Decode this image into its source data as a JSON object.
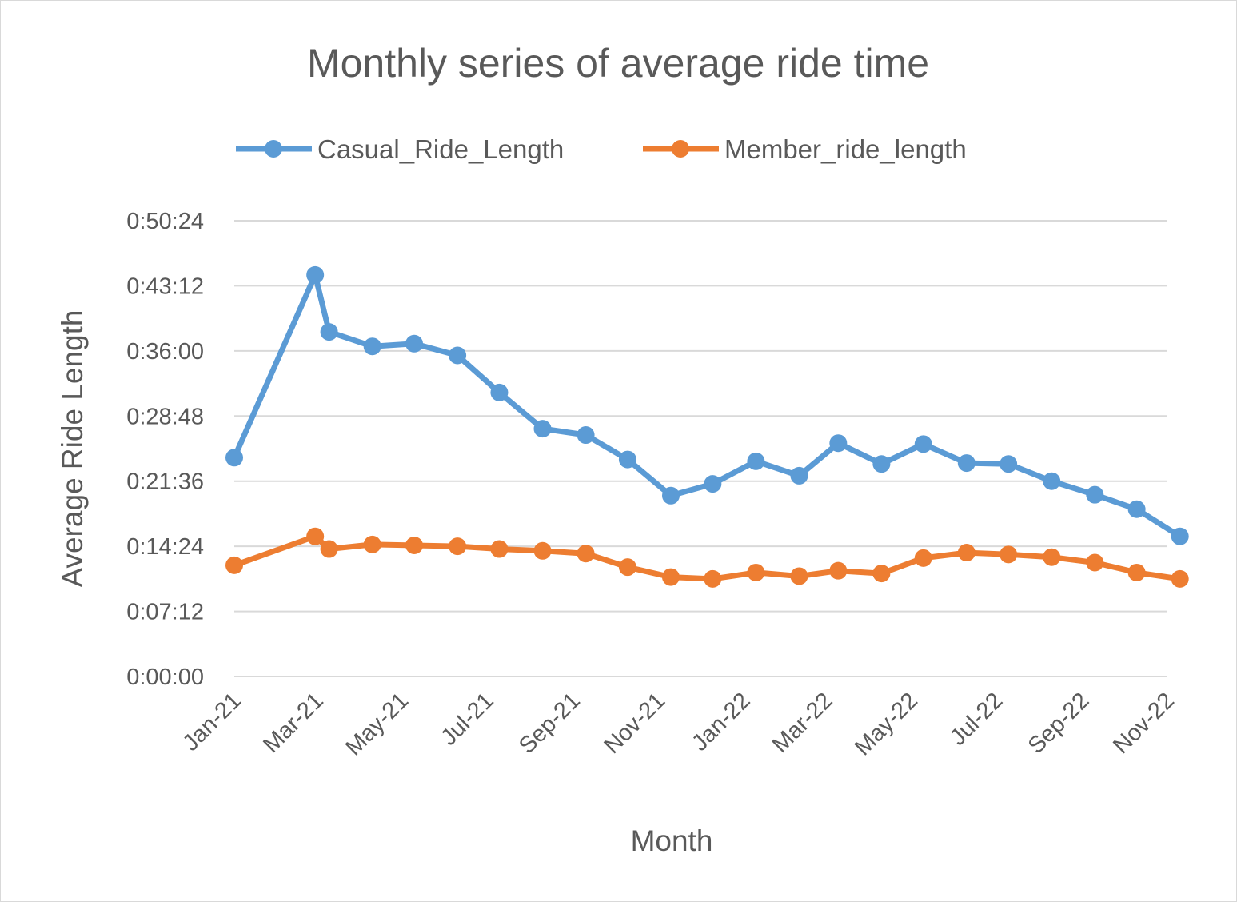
{
  "chart_data": {
    "type": "line",
    "title": "Monthly series of average ride time",
    "xlabel": "Month",
    "ylabel": "Average Ride Length",
    "x_tick_labels": [
      "Jan-21",
      "Mar-21",
      "May-21",
      "Jul-21",
      "Sep-21",
      "Nov-21",
      "Jan-22",
      "Mar-22",
      "May-22",
      "Jul-22",
      "Sep-22",
      "Nov-22"
    ],
    "x_tick_values": [
      "2021-01-01",
      "2021-03-01",
      "2021-05-01",
      "2021-07-01",
      "2021-09-01",
      "2021-11-01",
      "2022-01-01",
      "2022-03-01",
      "2022-05-01",
      "2022-07-01",
      "2022-09-01",
      "2022-11-01"
    ],
    "x_range": [
      "2021-01-01",
      "2022-11-01"
    ],
    "y_tick_labels": [
      "0:00:00",
      "0:07:12",
      "0:14:24",
      "0:21:36",
      "0:28:48",
      "0:36:00",
      "0:43:12",
      "0:50:24"
    ],
    "y_tick_values": [
      "0:00:00",
      "0:07:12",
      "0:14:24",
      "0:21:36",
      "0:28:48",
      "0:36:00",
      "0:43:12",
      "0:50:24"
    ],
    "ylim": [
      "0:00:00",
      "0:50:24"
    ],
    "grid": true,
    "legend_position": "top",
    "series": [
      {
        "name": "Casual_Ride_Length",
        "color": "#5b9bd5",
        "points": [
          {
            "x": "2021-01-01",
            "y": "0:24:12"
          },
          {
            "x": "2021-02-28",
            "y": "0:44:24"
          },
          {
            "x": "2021-03-10",
            "y": "0:38:06"
          },
          {
            "x": "2021-04-10",
            "y": "0:36:30"
          },
          {
            "x": "2021-05-10",
            "y": "0:36:48"
          },
          {
            "x": "2021-06-10",
            "y": "0:35:30"
          },
          {
            "x": "2021-07-10",
            "y": "0:31:24"
          },
          {
            "x": "2021-08-10",
            "y": "0:27:24"
          },
          {
            "x": "2021-09-10",
            "y": "0:26:42"
          },
          {
            "x": "2021-10-10",
            "y": "0:24:00"
          },
          {
            "x": "2021-11-10",
            "y": "0:20:00"
          },
          {
            "x": "2021-12-10",
            "y": "0:21:18"
          },
          {
            "x": "2022-01-10",
            "y": "0:23:48"
          },
          {
            "x": "2022-02-10",
            "y": "0:22:12"
          },
          {
            "x": "2022-03-10",
            "y": "0:25:48"
          },
          {
            "x": "2022-04-10",
            "y": "0:23:30"
          },
          {
            "x": "2022-05-10",
            "y": "0:25:42"
          },
          {
            "x": "2022-06-10",
            "y": "0:23:36"
          },
          {
            "x": "2022-07-10",
            "y": "0:23:30"
          },
          {
            "x": "2022-08-10",
            "y": "0:21:36"
          },
          {
            "x": "2022-09-10",
            "y": "0:20:06"
          },
          {
            "x": "2022-10-10",
            "y": "0:18:30"
          },
          {
            "x": "2022-11-10",
            "y": "0:15:30"
          }
        ]
      },
      {
        "name": "Member_ride_length",
        "color": "#ed7d31",
        "points": [
          {
            "x": "2021-01-01",
            "y": "0:12:18"
          },
          {
            "x": "2021-02-28",
            "y": "0:15:30"
          },
          {
            "x": "2021-03-10",
            "y": "0:14:06"
          },
          {
            "x": "2021-04-10",
            "y": "0:14:36"
          },
          {
            "x": "2021-05-10",
            "y": "0:14:30"
          },
          {
            "x": "2021-06-10",
            "y": "0:14:24"
          },
          {
            "x": "2021-07-10",
            "y": "0:14:06"
          },
          {
            "x": "2021-08-10",
            "y": "0:13:54"
          },
          {
            "x": "2021-09-10",
            "y": "0:13:36"
          },
          {
            "x": "2021-10-10",
            "y": "0:12:06"
          },
          {
            "x": "2021-11-10",
            "y": "0:11:00"
          },
          {
            "x": "2021-12-10",
            "y": "0:10:48"
          },
          {
            "x": "2022-01-10",
            "y": "0:11:30"
          },
          {
            "x": "2022-02-10",
            "y": "0:11:06"
          },
          {
            "x": "2022-03-10",
            "y": "0:11:42"
          },
          {
            "x": "2022-04-10",
            "y": "0:11:24"
          },
          {
            "x": "2022-05-10",
            "y": "0:13:06"
          },
          {
            "x": "2022-06-10",
            "y": "0:13:42"
          },
          {
            "x": "2022-07-10",
            "y": "0:13:30"
          },
          {
            "x": "2022-08-10",
            "y": "0:13:12"
          },
          {
            "x": "2022-09-10",
            "y": "0:12:36"
          },
          {
            "x": "2022-10-10",
            "y": "0:11:30"
          },
          {
            "x": "2022-11-10",
            "y": "0:10:48"
          }
        ]
      }
    ]
  }
}
